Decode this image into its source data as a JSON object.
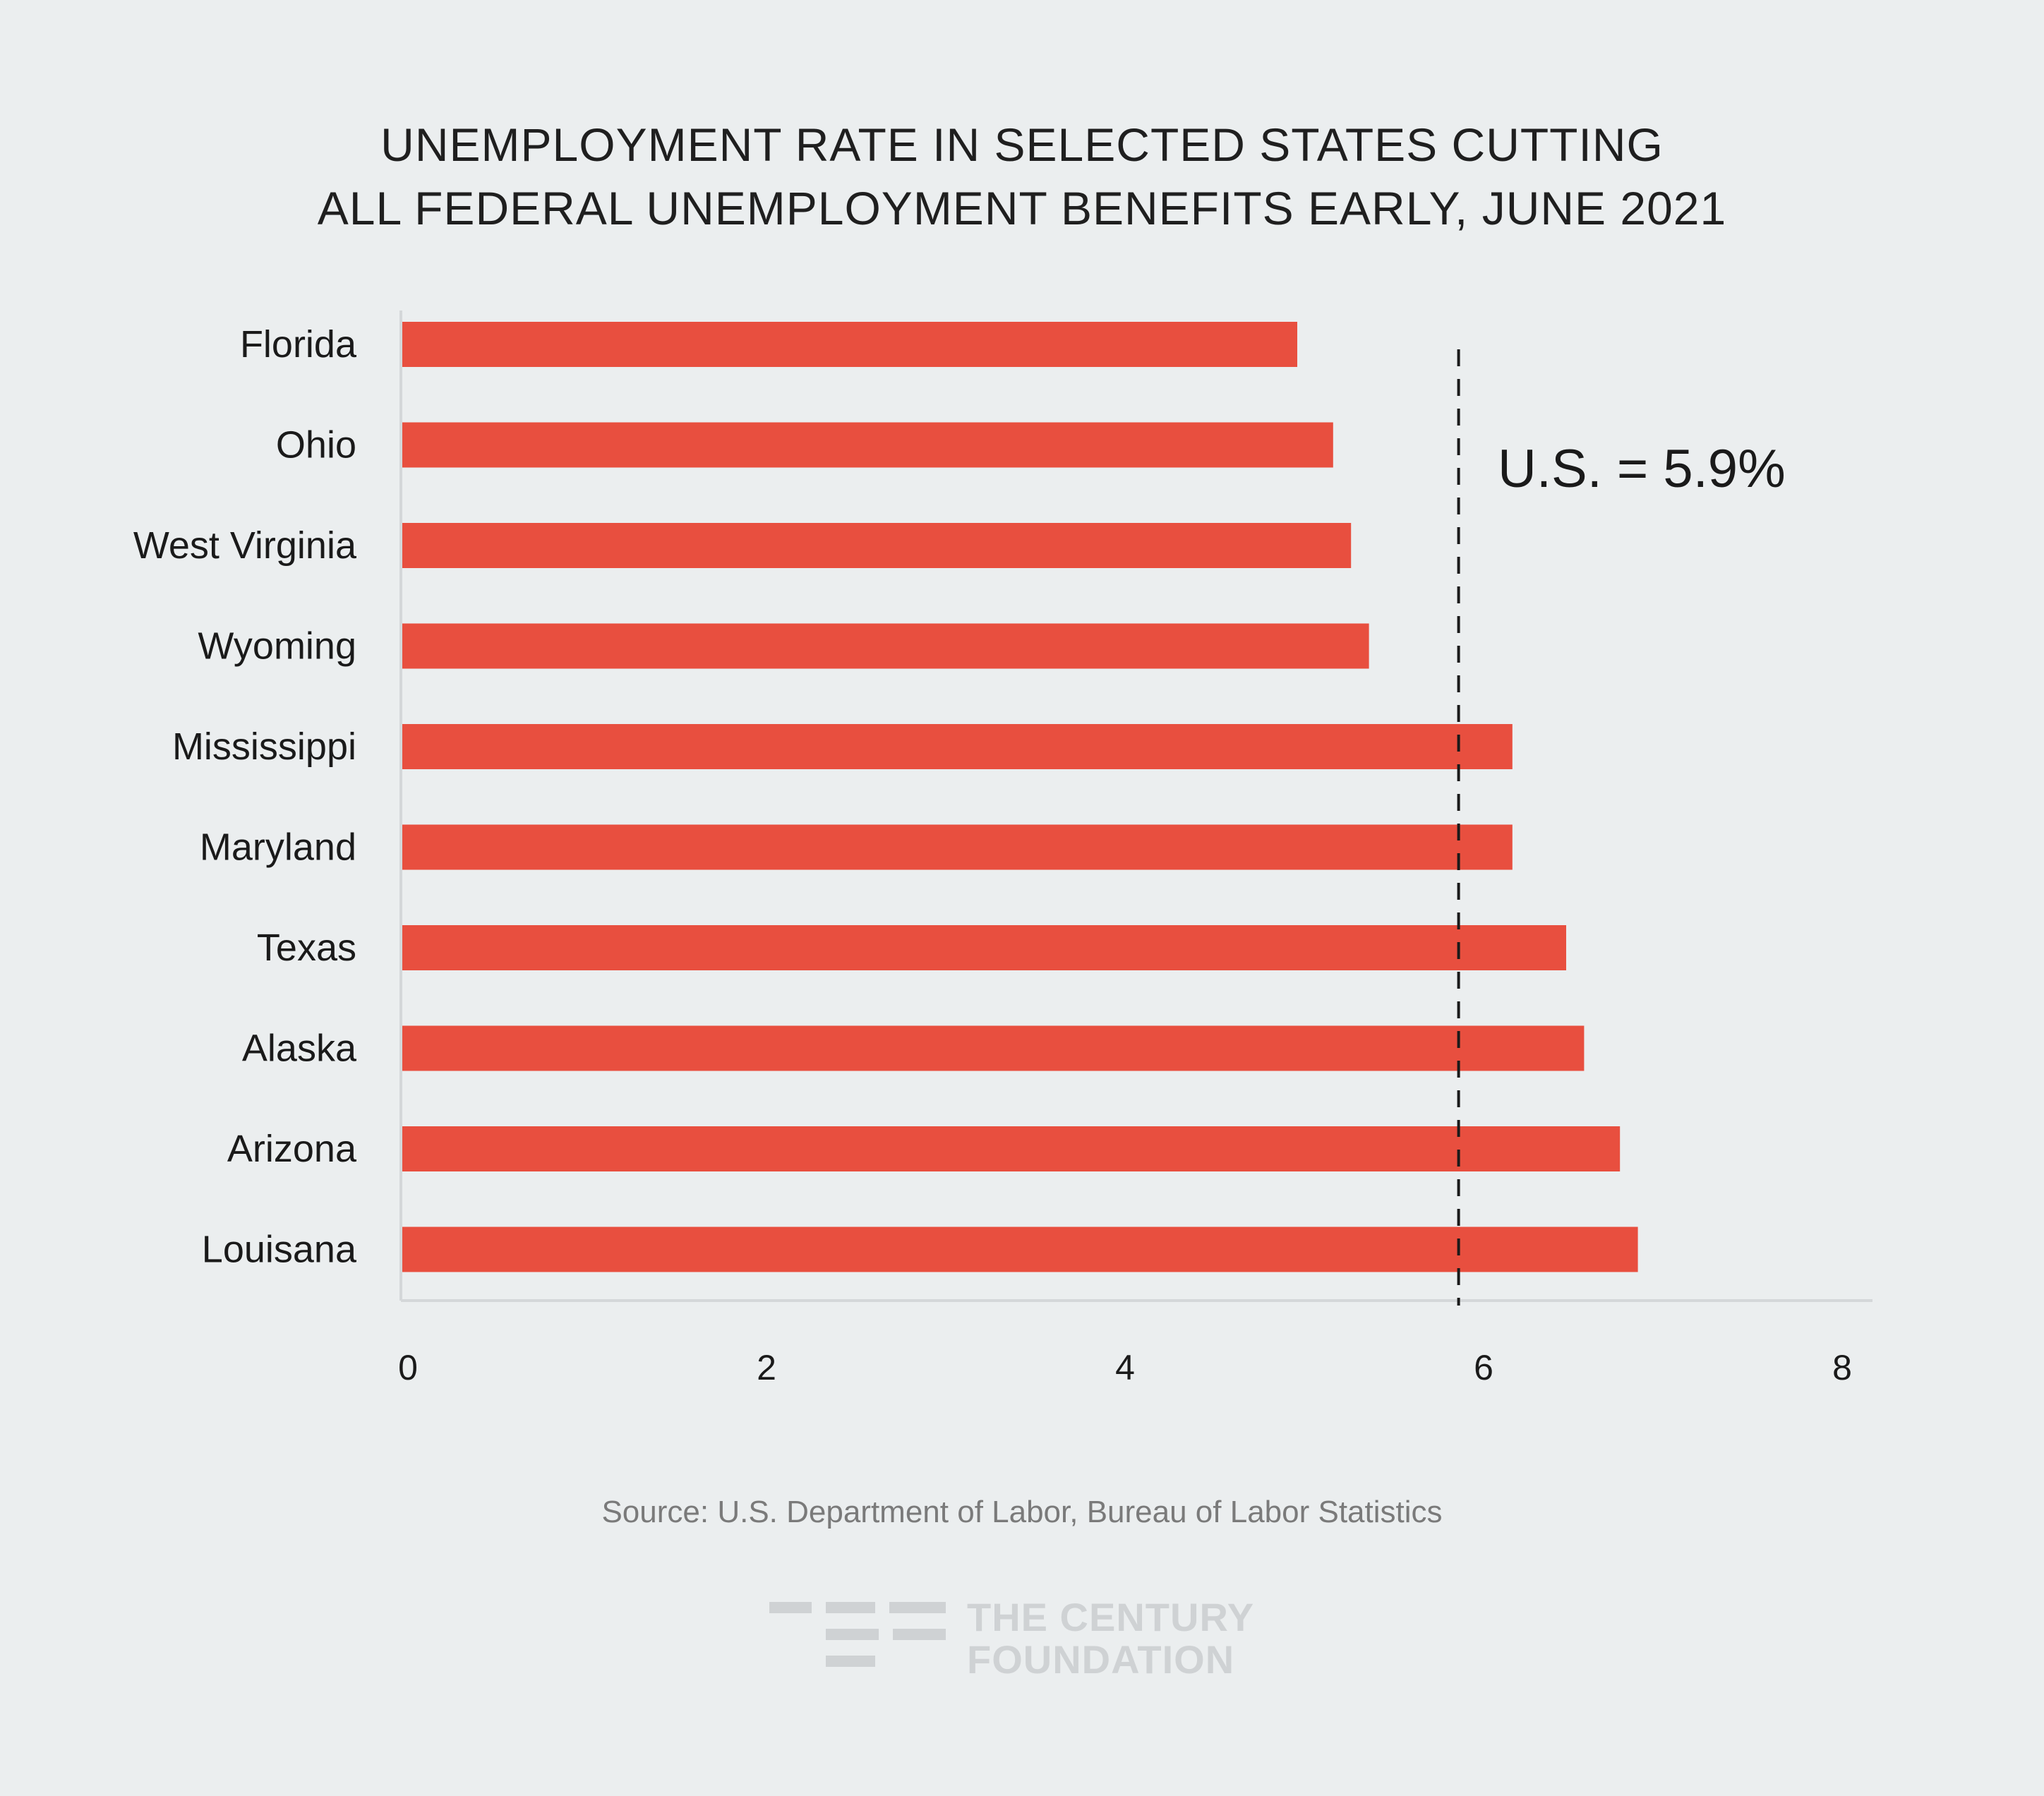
{
  "colors": {
    "background": "#ebeeef",
    "bar": "#e84f3f",
    "axis": "#d4d7d9",
    "text": "#1a1a1a",
    "source_text": "#7a7a7a",
    "logo": "#cfd2d4"
  },
  "chart_data": {
    "type": "bar",
    "orientation": "horizontal",
    "title": "UNEMPLOYMENT RATE IN SELECTED STATES CUTTING ALL FEDERAL UNEMPLOYMENT BENEFITS EARLY, JUNE 2021",
    "title_lines": [
      "UNEMPLOYMENT RATE IN SELECTED STATES CUTTING",
      "ALL FEDERAL UNEMPLOYMENT BENEFITS EARLY, JUNE 2021"
    ],
    "categories": [
      "Florida",
      "Ohio",
      "West Virginia",
      "Wyoming",
      "Mississippi",
      "Maryland",
      "Texas",
      "Alaska",
      "Arizona",
      "Louisana"
    ],
    "values": [
      5.0,
      5.2,
      5.3,
      5.4,
      6.2,
      6.2,
      6.5,
      6.6,
      6.8,
      6.9
    ],
    "xlim": [
      0,
      8
    ],
    "xticks": [
      0,
      2,
      4,
      6,
      8
    ],
    "xlabel": "",
    "ylabel": "",
    "grid": false,
    "reference_line": {
      "value": 5.9,
      "style": "dashed",
      "label": "U.S. = 5.9%"
    }
  },
  "source": "Source: U.S. Department of Labor, Bureau of Labor Statistics",
  "logo": {
    "line1": "THE CENTURY",
    "line2": "FOUNDATION"
  }
}
